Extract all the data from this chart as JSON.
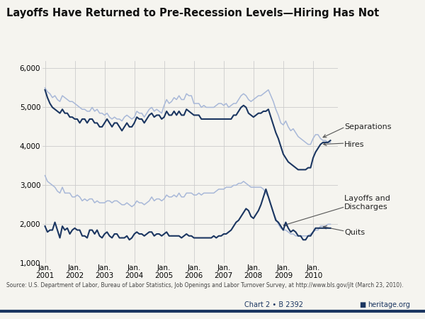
{
  "title": "Layoffs Have Returned to Pre-Recession Levels—Hiring Has Not",
  "source_text": "Source: U.S. Department of Labor, Bureau of Labor Statistics, Job Openings and Labor Turnover Survey, at http://www.bls.gov/jlt (March 23, 2010).",
  "chart_label": "Chart 2 • B 2392",
  "website": "heritage.org",
  "background_color": "#f5f4ef",
  "dark_blue": "#1b3661",
  "light_blue": "#a8b8d8",
  "ylim": [
    1000,
    6200
  ],
  "yticks": [
    1000,
    2000,
    3000,
    4000,
    5000,
    6000
  ],
  "xlabel_dates": [
    "Jan.\n2001",
    "Jan.\n2002",
    "Jan.\n2003",
    "Jan.\n2004",
    "Jan.\n2005",
    "Jan.\n2006",
    "Jan.\n2007",
    "Jan.\n2008",
    "Jan.\n2009",
    "Jan.\n2010"
  ],
  "separations": [
    5500,
    5400,
    5350,
    5250,
    5300,
    5200,
    5150,
    5300,
    5250,
    5200,
    5150,
    5150,
    5100,
    5050,
    5000,
    4950,
    4950,
    4900,
    4900,
    5000,
    4900,
    4950,
    4850,
    4850,
    4800,
    4850,
    4750,
    4700,
    4750,
    4700,
    4700,
    4650,
    4750,
    4800,
    4750,
    4700,
    4750,
    4900,
    4850,
    4850,
    4750,
    4850,
    4950,
    5000,
    4900,
    4950,
    4900,
    4850,
    5050,
    5200,
    5100,
    5150,
    5250,
    5200,
    5300,
    5200,
    5200,
    5350,
    5300,
    5300,
    5100,
    5100,
    5100,
    5000,
    5050,
    5000,
    5000,
    5000,
    5000,
    5050,
    5100,
    5100,
    5050,
    5100,
    5000,
    5050,
    5100,
    5100,
    5200,
    5300,
    5350,
    5300,
    5200,
    5150,
    5200,
    5250,
    5300,
    5300,
    5350,
    5400,
    5450,
    5300,
    5150,
    4950,
    4800,
    4600,
    4550,
    4650,
    4500,
    4400,
    4450,
    4350,
    4250,
    4200,
    4150,
    4100,
    4050,
    4050,
    4200,
    4300,
    4300,
    4200,
    4150,
    4150,
    4100,
    4100
  ],
  "hires": [
    5450,
    5250,
    5100,
    5000,
    4950,
    4900,
    4850,
    4950,
    4850,
    4850,
    4750,
    4750,
    4700,
    4700,
    4600,
    4700,
    4700,
    4600,
    4700,
    4700,
    4600,
    4600,
    4500,
    4500,
    4600,
    4700,
    4600,
    4500,
    4600,
    4600,
    4500,
    4400,
    4500,
    4600,
    4500,
    4500,
    4600,
    4750,
    4700,
    4700,
    4600,
    4700,
    4800,
    4850,
    4750,
    4800,
    4800,
    4700,
    4750,
    4900,
    4800,
    4800,
    4900,
    4800,
    4900,
    4800,
    4800,
    4950,
    4900,
    4850,
    4800,
    4800,
    4800,
    4700,
    4700,
    4700,
    4700,
    4700,
    4700,
    4700,
    4700,
    4700,
    4700,
    4700,
    4700,
    4700,
    4800,
    4800,
    4900,
    5000,
    5050,
    5000,
    4850,
    4800,
    4750,
    4800,
    4850,
    4850,
    4900,
    4900,
    4950,
    4750,
    4550,
    4350,
    4200,
    4000,
    3800,
    3700,
    3600,
    3550,
    3500,
    3450,
    3400,
    3400,
    3400,
    3400,
    3450,
    3450,
    3700,
    3850,
    3950,
    4050,
    4100,
    4100,
    4100,
    4150
  ],
  "layoffs": [
    1950,
    1800,
    1850,
    1850,
    2050,
    1850,
    1650,
    1950,
    1850,
    1900,
    1750,
    1850,
    1900,
    1850,
    1850,
    1700,
    1700,
    1650,
    1850,
    1850,
    1750,
    1850,
    1700,
    1650,
    1750,
    1800,
    1700,
    1650,
    1750,
    1750,
    1650,
    1650,
    1650,
    1700,
    1600,
    1650,
    1750,
    1800,
    1750,
    1750,
    1700,
    1750,
    1800,
    1800,
    1700,
    1750,
    1750,
    1700,
    1750,
    1800,
    1700,
    1700,
    1700,
    1700,
    1700,
    1650,
    1700,
    1750,
    1700,
    1700,
    1650,
    1650,
    1650,
    1650,
    1650,
    1650,
    1650,
    1650,
    1700,
    1650,
    1700,
    1700,
    1750,
    1750,
    1800,
    1850,
    1950,
    2050,
    2100,
    2200,
    2300,
    2400,
    2350,
    2200,
    2150,
    2250,
    2350,
    2500,
    2700,
    2900,
    2700,
    2500,
    2300,
    2100,
    2050,
    1950,
    1850,
    2050,
    1900,
    1800,
    1850,
    1800,
    1700,
    1700,
    1600,
    1600,
    1700,
    1700,
    1800,
    1900,
    1900,
    1900,
    1900,
    1900,
    1900,
    1900
  ],
  "quits": [
    3250,
    3100,
    3050,
    3000,
    2950,
    2850,
    2800,
    2950,
    2800,
    2800,
    2800,
    2700,
    2700,
    2750,
    2700,
    2600,
    2650,
    2600,
    2650,
    2650,
    2550,
    2600,
    2550,
    2550,
    2550,
    2600,
    2600,
    2550,
    2600,
    2600,
    2550,
    2500,
    2500,
    2550,
    2500,
    2450,
    2500,
    2600,
    2550,
    2550,
    2500,
    2550,
    2600,
    2700,
    2600,
    2650,
    2650,
    2600,
    2650,
    2750,
    2700,
    2700,
    2750,
    2700,
    2800,
    2700,
    2700,
    2800,
    2800,
    2800,
    2750,
    2750,
    2800,
    2750,
    2800,
    2800,
    2800,
    2800,
    2800,
    2850,
    2900,
    2900,
    2900,
    2950,
    2950,
    2950,
    3000,
    3000,
    3050,
    3050,
    3100,
    3050,
    3000,
    2950,
    2950,
    2950,
    2950,
    2950,
    2900,
    2800,
    2700,
    2500,
    2300,
    2150,
    2000,
    1900,
    1850,
    1850,
    1800,
    1750,
    1750,
    1700,
    1700,
    1700,
    1700,
    1700,
    1700,
    1750,
    1800,
    1850,
    1850,
    1950,
    1950,
    1950,
    2000,
    2000
  ]
}
